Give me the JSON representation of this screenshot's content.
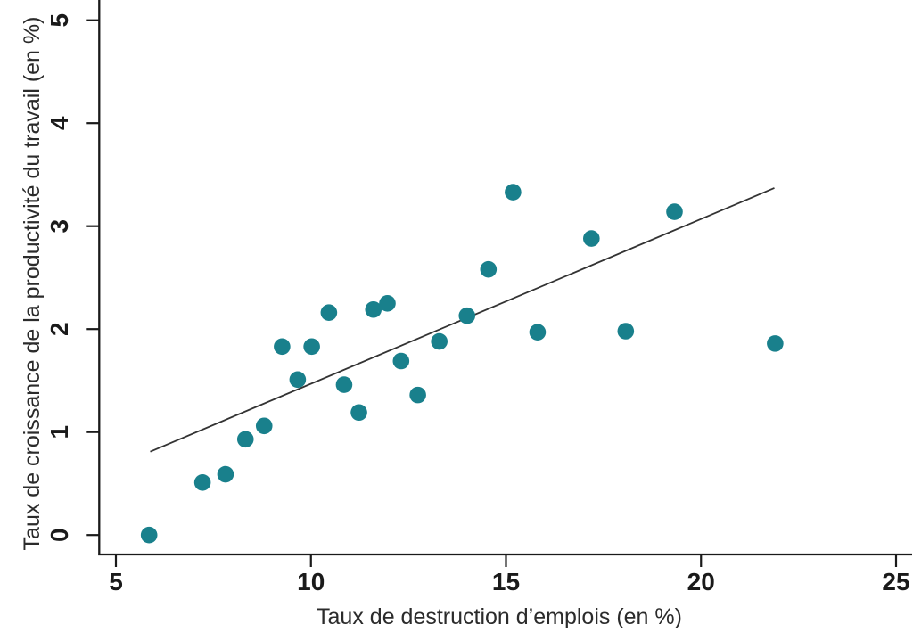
{
  "figure": {
    "background": "#ffffff"
  },
  "chart_data": {
    "type": "scatter",
    "title": "",
    "xlabel": "Taux de destruction d’emplois (en %)",
    "ylabel": "Taux de croissance de la productivité du travail (en %)",
    "x_ticks": [
      5,
      10,
      15,
      20,
      25
    ],
    "y_ticks": [
      0,
      1,
      2,
      3,
      4,
      5
    ],
    "xlim": [
      4.6,
      25.4
    ],
    "ylim": [
      -0.2,
      5.2
    ],
    "grid": false,
    "legend": "none",
    "point_color": "#19808C",
    "trend_line_color": "#333333",
    "axis_color": "#1a1a1a",
    "points": [
      [
        5.85,
        0.0
      ],
      [
        7.22,
        0.51
      ],
      [
        7.81,
        0.59
      ],
      [
        8.32,
        0.93
      ],
      [
        8.8,
        1.06
      ],
      [
        9.26,
        1.83
      ],
      [
        9.66,
        1.51
      ],
      [
        10.02,
        1.83
      ],
      [
        10.46,
        2.16
      ],
      [
        10.85,
        1.46
      ],
      [
        11.23,
        1.19
      ],
      [
        11.6,
        2.19
      ],
      [
        11.96,
        2.25
      ],
      [
        12.31,
        1.69
      ],
      [
        12.74,
        1.36
      ],
      [
        13.29,
        1.88
      ],
      [
        14.0,
        2.13
      ],
      [
        14.55,
        2.58
      ],
      [
        15.18,
        3.33
      ],
      [
        15.81,
        1.97
      ],
      [
        17.19,
        2.88
      ],
      [
        18.07,
        1.98
      ],
      [
        19.32,
        3.14
      ],
      [
        21.9,
        1.86
      ]
    ],
    "trend_line": {
      "x1": 5.88,
      "y1": 0.81,
      "x2": 21.88,
      "y2": 3.37
    }
  }
}
